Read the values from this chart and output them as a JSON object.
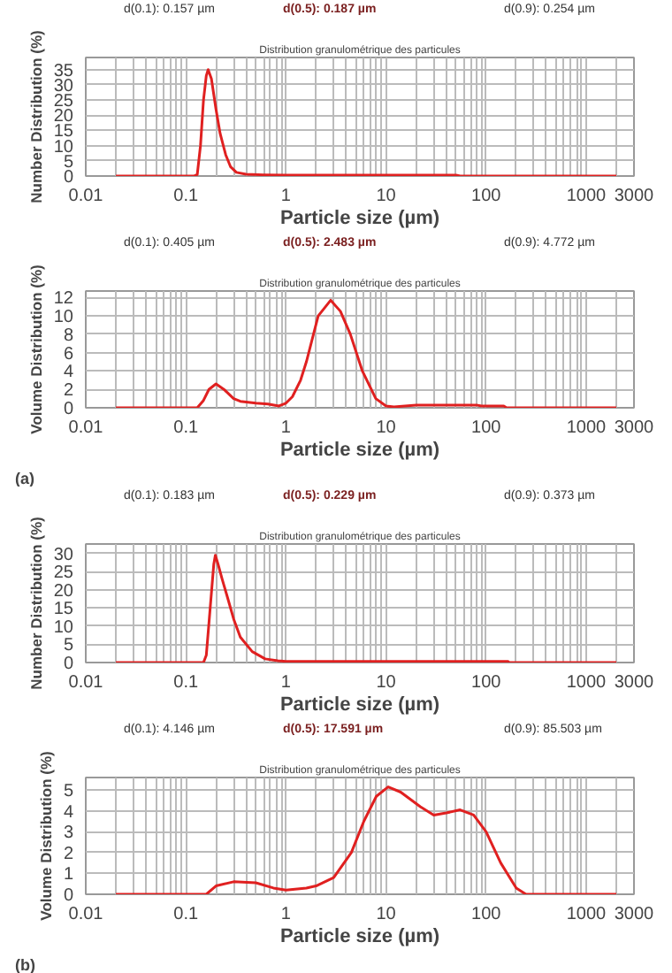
{
  "chart_data": [
    {
      "type": "line",
      "title": "Distribution granulométrique des particules",
      "xlabel": "Particle size (µm)",
      "ylabel": "Number Distribution (%)",
      "annotations": [
        "d(0.1): 0.157 µm",
        "d(0.5): 0.187 µm",
        "d(0.9): 0.254 µm"
      ],
      "series": [
        {
          "color": "#e02020",
          "x": [
            0.02,
            0.12,
            0.13,
            0.14,
            0.15,
            0.16,
            0.167,
            0.18,
            0.2,
            0.22,
            0.25,
            0.28,
            0.32,
            0.4,
            0.6,
            1,
            10,
            50,
            55,
            2000
          ],
          "values": [
            0,
            0,
            0.5,
            10,
            25,
            33,
            35,
            32,
            22,
            14,
            7,
            3,
            1.2,
            0.6,
            0.4,
            0.3,
            0.3,
            0.3,
            0,
            0
          ]
        }
      ],
      "log": "x",
      "xlim": [
        0.01,
        3000
      ],
      "ylim": [
        0,
        39
      ],
      "xticks": [
        0.01,
        0.1,
        1,
        10,
        100,
        1000,
        3000
      ],
      "yticks": [
        0,
        5,
        10,
        15,
        20,
        25,
        30,
        35
      ],
      "grid": true
    },
    {
      "type": "line",
      "title": "Distribution granulométrique des particules",
      "xlabel": "Particle size (µm)",
      "ylabel": "Volume Distribution (%)",
      "annotations": [
        "d(0.1): 0.405 µm",
        "d(0.5): 2.483 µm",
        "d(0.9): 4.772 µm",
        "(a)"
      ],
      "series": [
        {
          "color": "#e02020",
          "x": [
            0.02,
            0.13,
            0.15,
            0.17,
            0.2,
            0.24,
            0.3,
            0.35,
            0.5,
            0.66,
            0.85,
            1,
            1.16,
            1.4,
            1.6,
            2.1,
            2.8,
            3.5,
            4.4,
            5.8,
            7.9,
            10,
            12,
            20,
            80,
            90,
            150,
            160,
            2000
          ],
          "values": [
            0,
            0,
            0.8,
            2.0,
            2.6,
            2.0,
            1.0,
            0.7,
            0.5,
            0.4,
            0.2,
            0.5,
            1.2,
            3,
            5,
            10,
            11.7,
            10.5,
            8,
            4,
            1,
            0.2,
            0.1,
            0.3,
            0.3,
            0.2,
            0.2,
            0,
            0
          ]
        }
      ],
      "log": "x",
      "xlim": [
        0.01,
        3000
      ],
      "ylim": [
        0,
        12.7
      ],
      "xticks": [
        0.01,
        0.1,
        1,
        10,
        100,
        1000,
        3000
      ],
      "yticks": [
        0,
        2,
        4,
        6,
        8,
        10,
        12
      ],
      "grid": true
    },
    {
      "type": "line",
      "title": "Distribution granulométrique des particules",
      "xlabel": "Particle size (µm)",
      "ylabel": "Number Distribution (%)",
      "annotations": [
        "d(0.1): 0.183 µm",
        "d(0.5): 0.229 µm",
        "d(0.9): 0.373 µm"
      ],
      "series": [
        {
          "color": "#e02020",
          "x": [
            0.02,
            0.15,
            0.16,
            0.175,
            0.19,
            0.197,
            0.21,
            0.23,
            0.26,
            0.3,
            0.35,
            0.46,
            0.62,
            0.83,
            1,
            10,
            165,
            170,
            2000
          ],
          "values": [
            0,
            0,
            2,
            15,
            27,
            29.5,
            27,
            23,
            18,
            12,
            7,
            3,
            1,
            0.5,
            0.3,
            0.3,
            0.3,
            0,
            0
          ]
        }
      ],
      "log": "x",
      "xlim": [
        0.01,
        3000
      ],
      "ylim": [
        0,
        32.6
      ],
      "xticks": [
        0.01,
        0.1,
        1,
        10,
        100,
        1000,
        3000
      ],
      "yticks": [
        0,
        5,
        10,
        15,
        20,
        25,
        30
      ],
      "grid": true
    },
    {
      "type": "line",
      "title": "Distribution granulométrique des particules",
      "xlabel": "Particle size (µm)",
      "ylabel": "Volume Distribution (%)",
      "annotations": [
        "d(0.1): 4.146 µm",
        "d(0.5): 17.591 µm",
        "d(0.9): 85.503 µm",
        "(b)"
      ],
      "series": [
        {
          "color": "#e02020",
          "x": [
            0.02,
            0.16,
            0.2,
            0.3,
            0.5,
            0.75,
            1,
            1.6,
            2,
            3,
            4.5,
            6,
            8,
            10.5,
            14,
            22,
            30,
            40,
            55,
            75,
            100,
            140,
            200,
            250,
            2000
          ],
          "values": [
            0,
            0,
            0.4,
            0.6,
            0.55,
            0.3,
            0.2,
            0.3,
            0.4,
            0.8,
            2,
            3.5,
            4.7,
            5.15,
            4.9,
            4.2,
            3.8,
            3.9,
            4.05,
            3.8,
            3,
            1.5,
            0.3,
            0,
            0
          ]
        }
      ],
      "log": "x",
      "xlim": [
        0.01,
        3000
      ],
      "ylim": [
        0,
        5.6
      ],
      "xticks": [
        0.01,
        0.1,
        1,
        10,
        100,
        1000,
        3000
      ],
      "yticks": [
        0,
        1,
        2,
        3,
        4,
        5
      ],
      "grid": true
    }
  ]
}
